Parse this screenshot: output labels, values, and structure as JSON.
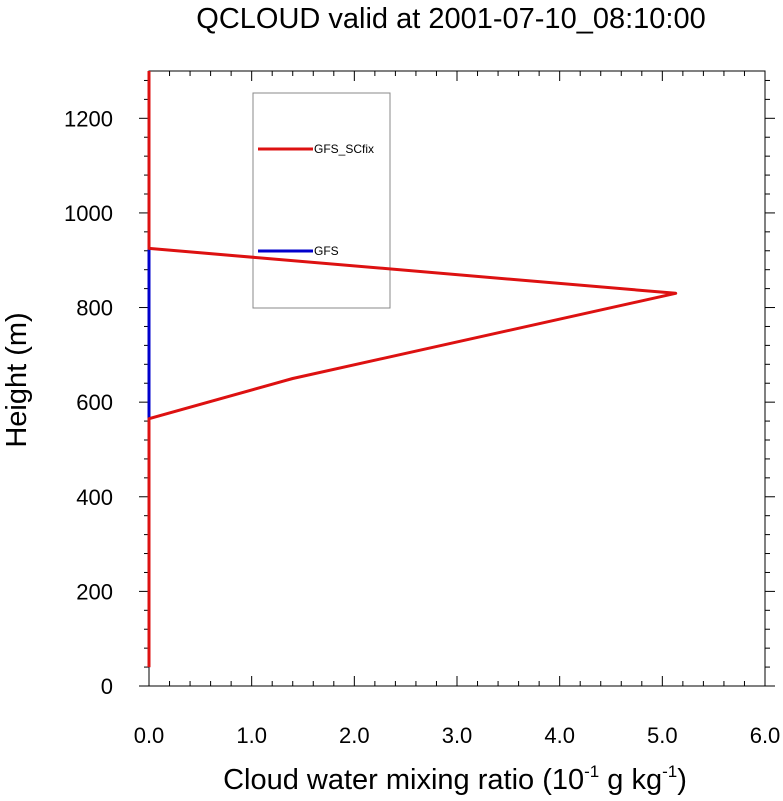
{
  "chart_data": {
    "type": "line",
    "title": "QCLOUD valid at 2001-07-10_08:10:00",
    "xlabel_main": "Cloud water mixing ratio (10",
    "xlabel_sup1": "-1",
    "xlabel_mid": " g kg",
    "xlabel_sup2": "-1",
    "xlabel_end": ")",
    "ylabel": "Height (m)",
    "xlim": [
      0,
      6
    ],
    "ylim": [
      0,
      1300
    ],
    "xticks": [
      "0.0",
      "1.0",
      "2.0",
      "3.0",
      "4.0",
      "5.0",
      "6.0"
    ],
    "yticks": [
      "0",
      "200",
      "400",
      "600",
      "800",
      "1000",
      "1200"
    ],
    "legend_position": "upper-left inside plot",
    "series": [
      {
        "name": "GFS",
        "color": "#0000cc",
        "x": [
          0,
          0,
          0,
          0,
          0,
          0,
          0,
          0,
          0,
          0,
          0,
          0,
          0,
          0,
          0,
          0,
          0,
          0,
          0,
          0
        ],
        "y": [
          40,
          100,
          200,
          300,
          400,
          500,
          560,
          600,
          650,
          700,
          750,
          800,
          830,
          880,
          925,
          1000,
          1100,
          1200,
          1250,
          1300
        ]
      },
      {
        "name": "GFS_SCfix",
        "color": "#dd1111",
        "x": [
          0,
          0,
          0,
          0,
          0,
          1.4,
          5.13,
          0,
          0,
          0,
          0
        ],
        "y": [
          40,
          200,
          400,
          500,
          565,
          650,
          830,
          925,
          1000,
          1200,
          1300
        ]
      }
    ]
  }
}
